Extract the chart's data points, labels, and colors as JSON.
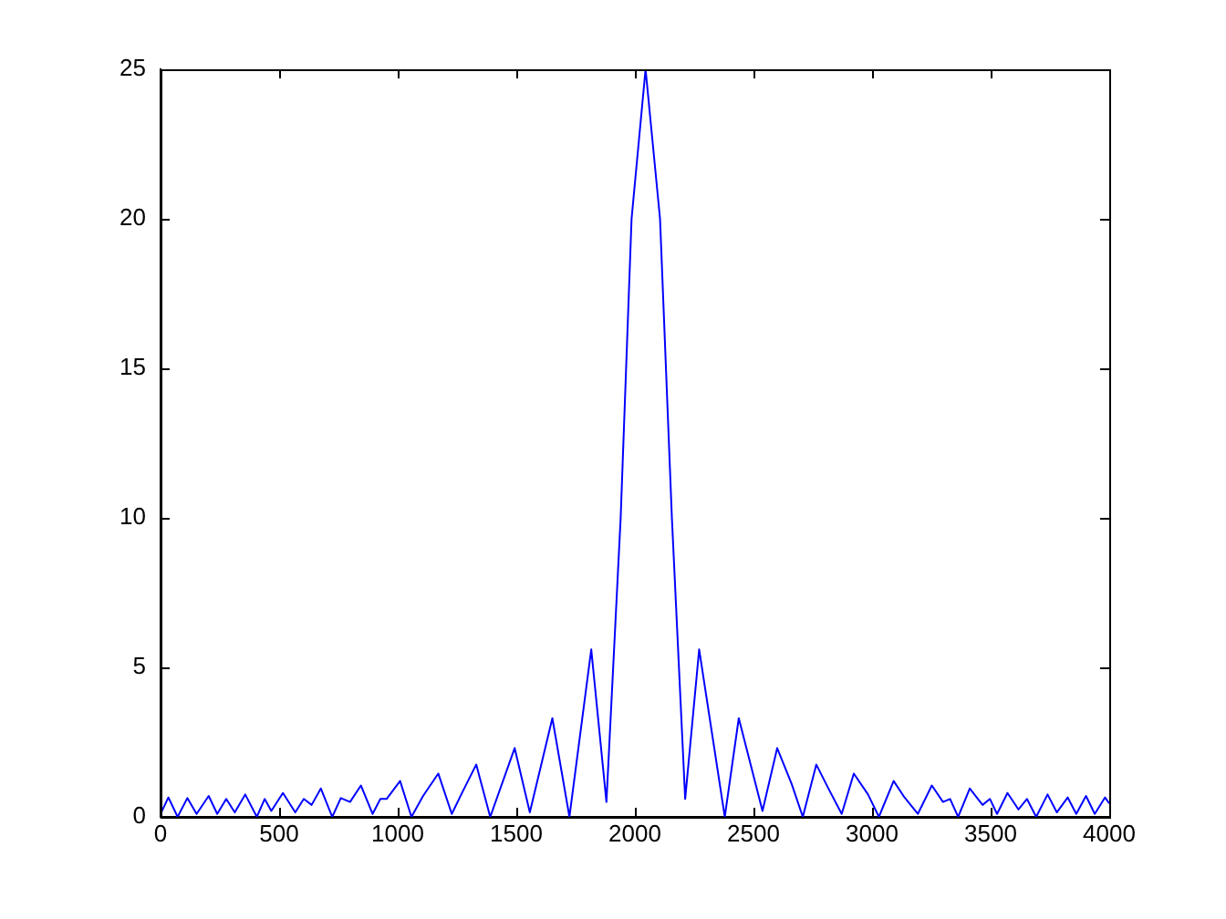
{
  "chart_data": {
    "type": "line",
    "x": [
      0,
      33,
      72,
      113,
      152,
      203,
      239,
      277,
      313,
      357,
      406,
      439,
      467,
      516,
      568,
      604,
      637,
      676,
      724,
      760,
      799,
      845,
      894,
      927,
      953,
      1010,
      1058,
      1107,
      1171,
      1228,
      1274,
      1331,
      1390,
      1493,
      1557,
      1652,
      1724,
      1816,
      1880,
      1940,
      1986,
      2045,
      2106,
      2156,
      2212,
      2271,
      2379,
      2438,
      2538,
      2600,
      2661,
      2708,
      2765,
      2816,
      2872,
      2923,
      2983,
      3029,
      3091,
      3137,
      3193,
      3252,
      3299,
      3329,
      3363,
      3412,
      3466,
      3497,
      3527,
      3571,
      3617,
      3653,
      3692,
      3740,
      3779,
      3825,
      3861,
      3902,
      3939,
      3982,
      4000
    ],
    "series": [
      {
        "color": "#0000ff",
        "values": [
          0.1,
          0.65,
          0,
          0.63,
          0.1,
          0.7,
          0.1,
          0.6,
          0.15,
          0.75,
          0,
          0.6,
          0.2,
          0.8,
          0.15,
          0.6,
          0.4,
          0.95,
          0,
          0.63,
          0.5,
          1.05,
          0.1,
          0.6,
          0.6,
          1.2,
          0,
          0.7,
          1.45,
          0.1,
          0.85,
          1.75,
          0,
          2.3,
          0.15,
          3.3,
          0,
          5.6,
          0.5,
          10,
          20,
          25,
          20,
          10,
          0.6,
          5.6,
          0,
          3.3,
          0.2,
          2.3,
          1.1,
          0,
          1.75,
          0.95,
          0.1,
          1.45,
          0.75,
          0,
          1.2,
          0.65,
          0.1,
          1.05,
          0.5,
          0.6,
          0,
          0.95,
          0.4,
          0.6,
          0.1,
          0.8,
          0.25,
          0.6,
          0,
          0.75,
          0.15,
          0.65,
          0.1,
          0.7,
          0.1,
          0.65,
          0.45
        ]
      }
    ],
    "xlim": [
      0,
      4000
    ],
    "xticks": [
      0,
      500,
      1000,
      1500,
      2000,
      2500,
      3000,
      3500,
      4000
    ],
    "ylim": [
      0,
      25
    ],
    "yticks": [
      0,
      5,
      10,
      15,
      20,
      25
    ],
    "grid": false,
    "legend": false,
    "marker": "none",
    "line_style": "solid"
  }
}
